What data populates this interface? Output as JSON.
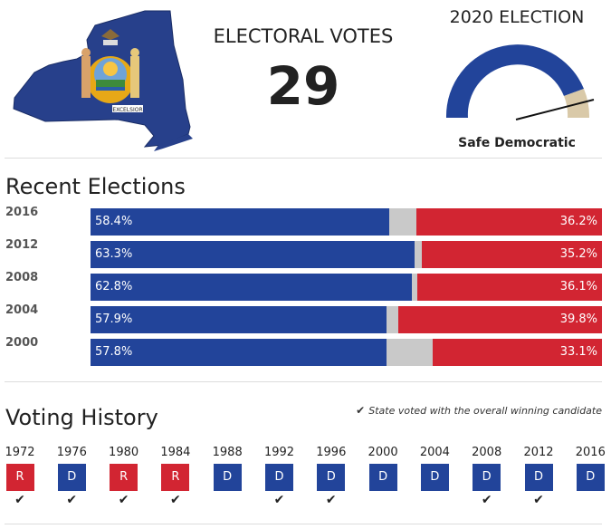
{
  "header": {
    "electoral_votes_title": "ELECTORAL VOTES",
    "electoral_votes": "29",
    "forecast_title": "2020 ELECTION",
    "forecast_rating": "Safe Democratic",
    "state_map_seal_text": "EXCELSIOR"
  },
  "gauge": {
    "needle_value": 0.94,
    "colors": {
      "dem": "#22449a",
      "tossup": "#d9c9a8"
    }
  },
  "recent_elections": {
    "title": "Recent Elections",
    "rows": [
      {
        "year": "2016",
        "dem": 58.4,
        "rep": 36.2,
        "dem_label": "58.4%",
        "rep_label": "36.2%"
      },
      {
        "year": "2012",
        "dem": 63.3,
        "rep": 35.2,
        "dem_label": "63.3%",
        "rep_label": "35.2%"
      },
      {
        "year": "2008",
        "dem": 62.8,
        "rep": 36.1,
        "dem_label": "62.8%",
        "rep_label": "36.1%"
      },
      {
        "year": "2004",
        "dem": 57.9,
        "rep": 39.8,
        "dem_label": "57.9%",
        "rep_label": "39.8%"
      },
      {
        "year": "2000",
        "dem": 57.8,
        "rep": 33.1,
        "dem_label": "57.8%",
        "rep_label": "33.1%"
      }
    ]
  },
  "voting_history": {
    "title": "Voting History",
    "legend": "State voted with the overall winning candidate",
    "items": [
      {
        "year": "1972",
        "party": "R",
        "won": true
      },
      {
        "year": "1976",
        "party": "D",
        "won": true
      },
      {
        "year": "1980",
        "party": "R",
        "won": true
      },
      {
        "year": "1984",
        "party": "R",
        "won": true
      },
      {
        "year": "1988",
        "party": "D",
        "won": false
      },
      {
        "year": "1992",
        "party": "D",
        "won": true
      },
      {
        "year": "1996",
        "party": "D",
        "won": true
      },
      {
        "year": "2000",
        "party": "D",
        "won": false
      },
      {
        "year": "2004",
        "party": "D",
        "won": false
      },
      {
        "year": "2008",
        "party": "D",
        "won": true
      },
      {
        "year": "2012",
        "party": "D",
        "won": true
      },
      {
        "year": "2016",
        "party": "D",
        "won": false
      }
    ]
  },
  "colors": {
    "dem": "#22449a",
    "rep": "#d22532",
    "other": "#c9c9c9"
  }
}
